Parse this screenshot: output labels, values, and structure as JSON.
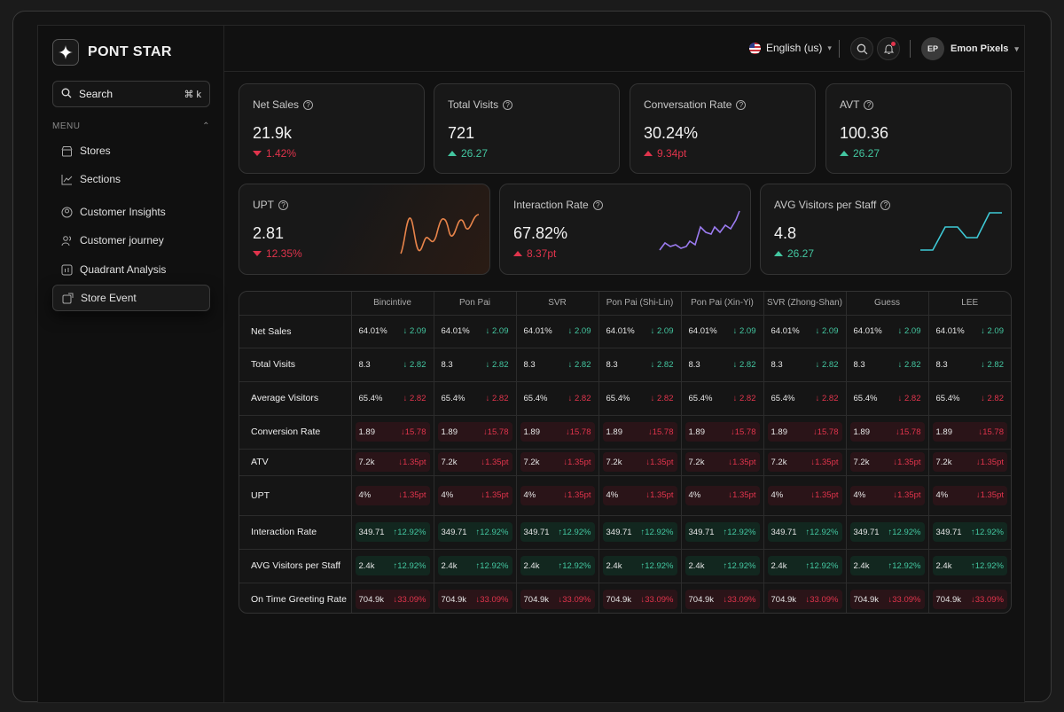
{
  "brand": {
    "name": "PONT STAR"
  },
  "search": {
    "label": "Search",
    "shortcut": "⌘ k"
  },
  "menu": {
    "heading": "MENU",
    "items": [
      {
        "label": "Stores",
        "icon": "store-icon"
      },
      {
        "label": "Sections",
        "icon": "chart-line-icon"
      },
      {
        "label": "Customer Insights",
        "icon": "user-circle-icon"
      },
      {
        "label": "Customer journey",
        "icon": "users-icon"
      },
      {
        "label": "Quadrant Analysis",
        "icon": "quadrant-icon"
      },
      {
        "label": "Store Event",
        "icon": "event-icon"
      }
    ]
  },
  "topbar": {
    "language": "English (us)",
    "user": {
      "initials": "EP",
      "name": "Emon Pixels"
    }
  },
  "kpis": [
    {
      "title": "Net Sales",
      "value": "21.9k",
      "delta": "1.42%",
      "dir": "down"
    },
    {
      "title": "Total Visits",
      "value": "721",
      "delta": "26.27",
      "dir": "up"
    },
    {
      "title": "Conversation Rate",
      "value": "30.24%",
      "delta": "9.34pt",
      "dir": "up-red"
    },
    {
      "title": "AVT",
      "value": "100.36",
      "delta": "26.27",
      "dir": "up"
    }
  ],
  "kpis2": [
    {
      "title": "UPT",
      "value": "2.81",
      "delta": "12.35%",
      "dir": "down",
      "color": "#e8844a"
    },
    {
      "title": "Interaction Rate",
      "value": "67.82%",
      "delta": "8.37pt",
      "dir": "up-red",
      "color": "#9b7bf0"
    },
    {
      "title": "AVG Visitors per Staff",
      "value": "4.8",
      "delta": "26.27",
      "dir": "up",
      "color": "#3ec9d6"
    }
  ],
  "table": {
    "columns": [
      "Bincintive",
      "Pon Pai",
      "SVR",
      "Pon Pai (Shi-Lin)",
      "Pon Pai (Xin-Yi)",
      "SVR (Zhong-Shan)",
      "Guess",
      "LEE"
    ],
    "rows": [
      {
        "label": "Net Sales",
        "value": "64.01%",
        "delta": "↓ 2.09",
        "tone": "green",
        "pill": false
      },
      {
        "label": "Total Visits",
        "value": "8.3",
        "delta": "↓ 2.82",
        "tone": "green",
        "pill": false
      },
      {
        "label": "Average Visitors",
        "value": "65.4%",
        "delta": "↓ 2.82",
        "tone": "red",
        "pill": false
      },
      {
        "label": "Conversion Rate",
        "value": "1.89",
        "delta": "↓15.78",
        "tone": "red",
        "pill": true
      },
      {
        "label": "ATV",
        "value": "7.2k",
        "delta": "↓1.35pt",
        "tone": "red",
        "pill": true
      },
      {
        "label": "UPT",
        "value": "4%",
        "delta": "↓1.35pt",
        "tone": "red",
        "pill": true
      },
      {
        "label": "Interaction Rate",
        "value": "349.71",
        "delta": "↑12.92%",
        "tone": "green",
        "pill": true
      },
      {
        "label": "AVG Visitors per Staff",
        "value": "2.4k",
        "delta": "↑12.92%",
        "tone": "green",
        "pill": true
      },
      {
        "label": "On Time Greeting Rate",
        "value": "704.9k",
        "delta": "↓33.09%",
        "tone": "red",
        "pill": true
      }
    ]
  }
}
